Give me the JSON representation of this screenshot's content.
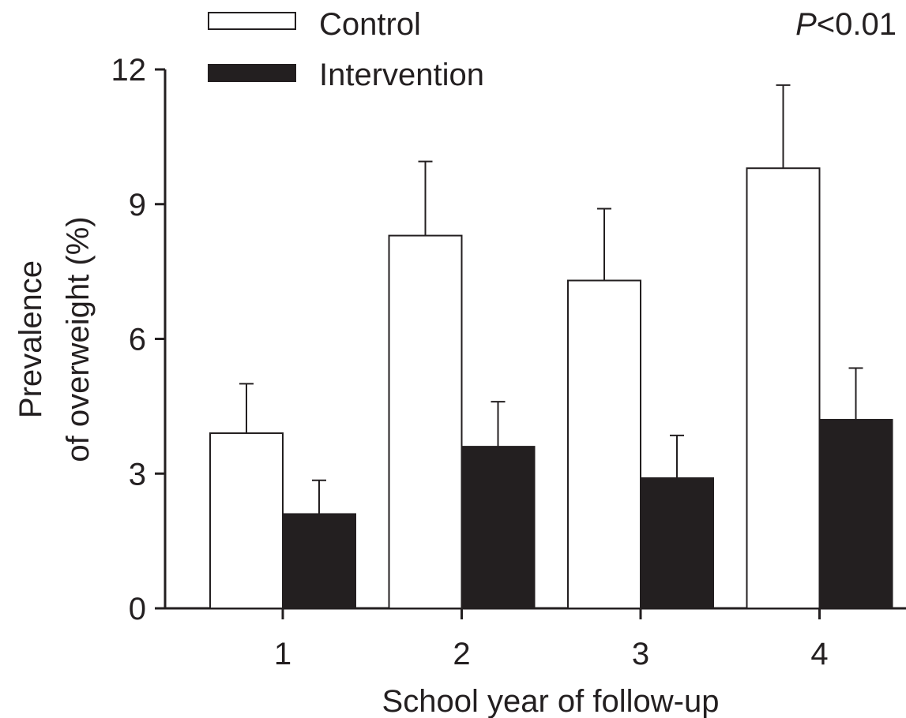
{
  "chart_data": {
    "type": "bar",
    "xlabel": "School year of follow-up",
    "ylabel_line1": "Prevalence",
    "ylabel_line2": "of overweight (%)",
    "categories": [
      "1",
      "2",
      "3",
      "4"
    ],
    "ylim": [
      0,
      12
    ],
    "yticks": [
      "0",
      "3",
      "6",
      "9",
      "12"
    ],
    "grid": false,
    "legend_position": "top-left",
    "annotation": {
      "italic": "P",
      "rest": "<0.01"
    },
    "series": [
      {
        "name": "Control",
        "fill": "#ffffff",
        "values": [
          3.9,
          8.3,
          7.3,
          9.8
        ],
        "errors": [
          1.1,
          1.65,
          1.6,
          1.85
        ]
      },
      {
        "name": "Intervention",
        "fill": "#231f20",
        "values": [
          2.1,
          3.6,
          2.9,
          4.2
        ],
        "errors": [
          0.75,
          1.0,
          0.95,
          1.15
        ]
      }
    ]
  }
}
